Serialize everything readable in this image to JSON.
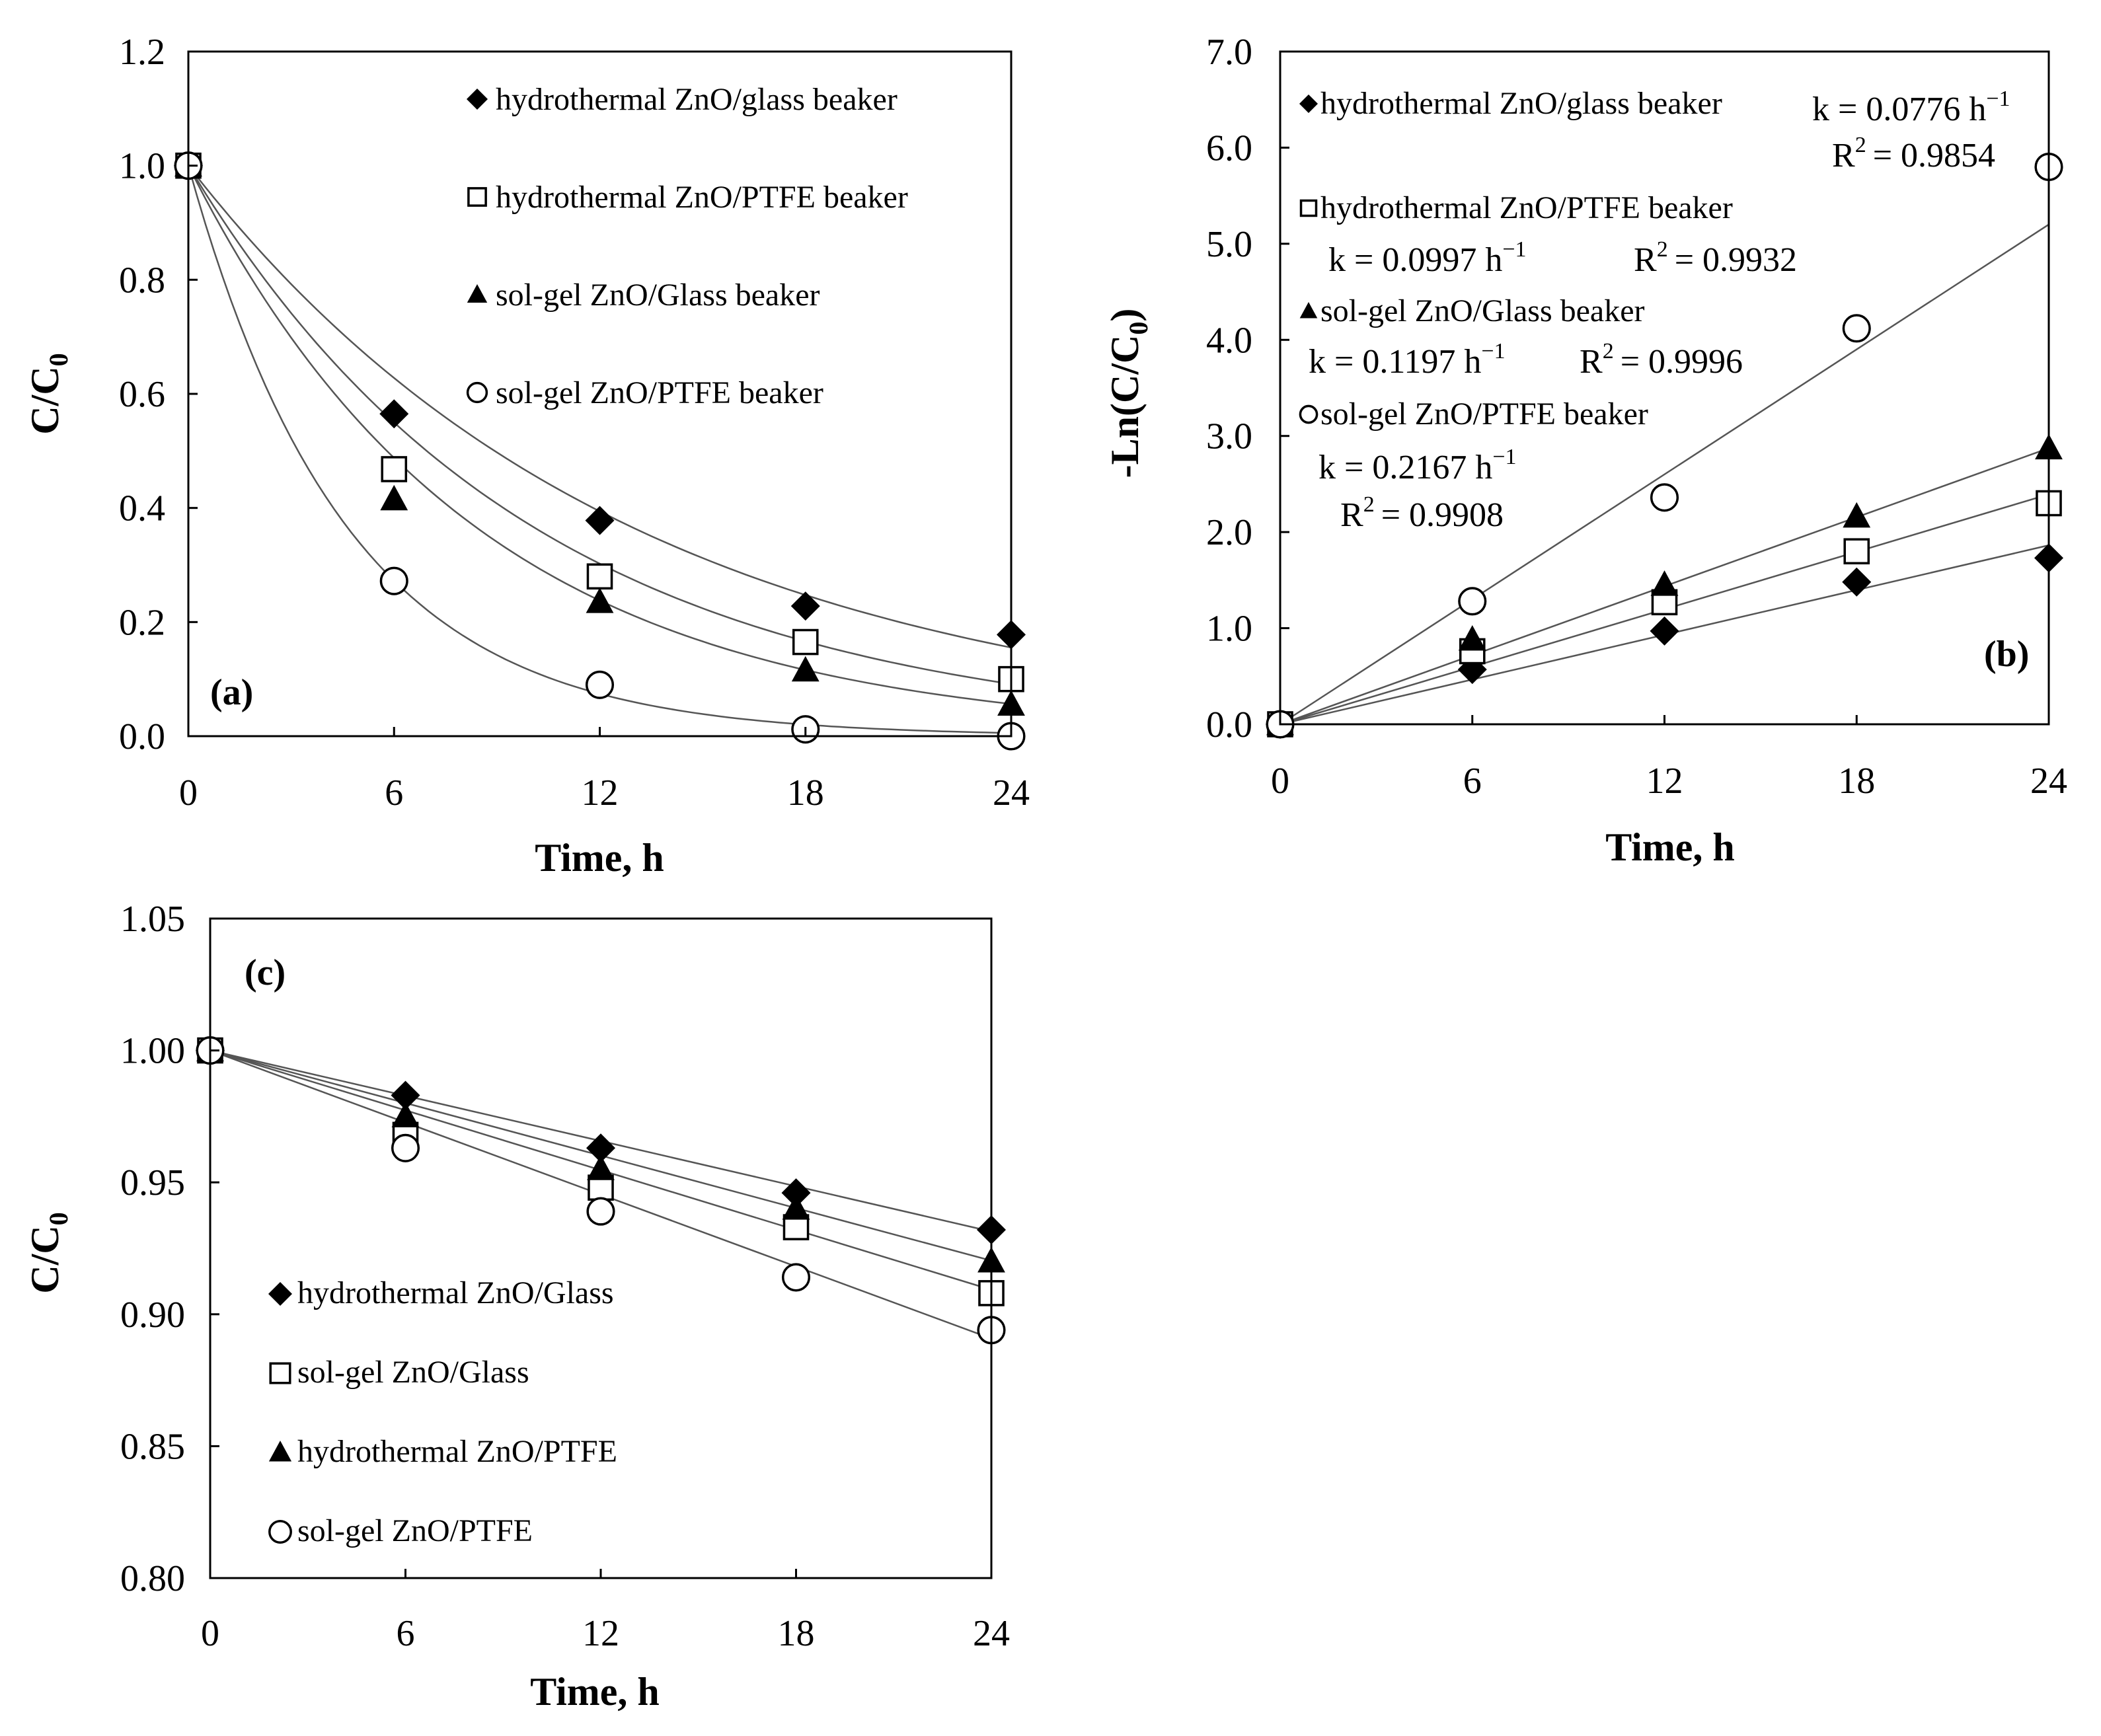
{
  "chart_data": [
    {
      "id": "a",
      "type": "scatter",
      "panel_label": "(a)",
      "xlabel": "Time, h",
      "ylabel_main": "C/C",
      "ylabel_sub": "0",
      "xlim": [
        0,
        24
      ],
      "ylim": [
        0,
        1.2
      ],
      "xticks": [
        "0",
        "6",
        "12",
        "18",
        "24"
      ],
      "yticks": [
        "0.0",
        "0.2",
        "0.4",
        "0.6",
        "0.8",
        "1.0",
        "1.2"
      ],
      "fit": "exponential",
      "x": [
        0,
        6,
        12,
        18,
        24
      ],
      "series": [
        {
          "name": "hydrothermal ZnO/glass beaker",
          "marker": "diamond",
          "k": 0.0776,
          "values": [
            1.0,
            0.565,
            0.378,
            0.228,
            0.178
          ]
        },
        {
          "name": "hydrothermal ZnO/PTFE beaker",
          "marker": "square",
          "k": 0.0997,
          "values": [
            1.0,
            0.468,
            0.28,
            0.165,
            0.1
          ]
        },
        {
          "name": "sol-gel ZnO/Glass beaker",
          "marker": "triangle",
          "k": 0.1197,
          "values": [
            1.0,
            0.415,
            0.235,
            0.115,
            0.055
          ]
        },
        {
          "name": "sol-gel ZnO/PTFE beaker",
          "marker": "circle",
          "k": 0.2167,
          "values": [
            1.0,
            0.272,
            0.09,
            0.012,
            0.0
          ]
        }
      ]
    },
    {
      "id": "b",
      "type": "scatter",
      "panel_label": "(b)",
      "xlabel": "Time, h",
      "ylabel_main": "-Ln(C/C",
      "ylabel_sub": "0",
      "ylabel_end": ")",
      "xlim": [
        0,
        24
      ],
      "ylim": [
        0,
        7
      ],
      "xticks": [
        "0",
        "6",
        "12",
        "18",
        "24"
      ],
      "yticks": [
        "0.0",
        "1.0",
        "2.0",
        "3.0",
        "4.0",
        "5.0",
        "6.0",
        "7.0"
      ],
      "fit": "linear",
      "x": [
        0,
        6,
        12,
        18,
        24
      ],
      "series": [
        {
          "name": "hydrothermal ZnO/glass beaker",
          "marker": "diamond",
          "slope": 0.0776,
          "values": [
            0.0,
            0.57,
            0.97,
            1.48,
            1.73
          ]
        },
        {
          "name": "hydrothermal ZnO/PTFE beaker",
          "marker": "square",
          "slope": 0.0997,
          "values": [
            0.0,
            0.76,
            1.27,
            1.8,
            2.3
          ]
        },
        {
          "name": "sol-gel ZnO/Glass beaker",
          "marker": "triangle",
          "slope": 0.1197,
          "values": [
            0.0,
            0.88,
            1.45,
            2.16,
            2.87
          ]
        },
        {
          "name": "sol-gel ZnO/PTFE beaker",
          "marker": "circle",
          "slope": 0.2167,
          "values": [
            0.0,
            1.28,
            2.36,
            4.12,
            5.8
          ]
        }
      ],
      "annotations": {
        "k_diamond": "k = 0.0776 h",
        "r2_diamond": "= 0.9854",
        "k_square": "k = 0.0997 h",
        "r2_square": "= 0.9932",
        "k_triangle": "k = 0.1197 h",
        "r2_triangle": "= 0.9996",
        "k_circle": "k = 0.2167 h",
        "r2_circle": "= 0.9908",
        "unit_exp": "−1",
        "r_letter": "R",
        "r_exp": "2"
      }
    },
    {
      "id": "c",
      "type": "scatter",
      "panel_label": "(c)",
      "xlabel": "Time, h",
      "ylabel_main": "C/C",
      "ylabel_sub": "0",
      "xlim": [
        0,
        24
      ],
      "ylim": [
        0.8,
        1.05
      ],
      "xticks": [
        "0",
        "6",
        "12",
        "18",
        "24"
      ],
      "yticks": [
        "0.80",
        "0.85",
        "0.90",
        "0.95",
        "1.00",
        "1.05"
      ],
      "fit": "linear",
      "x": [
        0,
        6,
        12,
        18,
        24
      ],
      "series": [
        {
          "name": "hydrothermal ZnO/Glass",
          "marker": "diamond",
          "slope": -0.00286,
          "values": [
            1.0,
            0.983,
            0.963,
            0.946,
            0.932
          ]
        },
        {
          "name": "sol-gel ZnO/Glass",
          "marker": "square",
          "slope": -0.00378,
          "values": [
            1.0,
            0.968,
            0.948,
            0.933,
            0.908
          ]
        },
        {
          "name": "hydrothermal ZnO/PTFE",
          "marker": "triangle",
          "slope": -0.00332,
          "values": [
            1.0,
            0.975,
            0.955,
            0.94,
            0.92
          ]
        },
        {
          "name": "sol-gel ZnO/PTFE",
          "marker": "circle",
          "slope": -0.00455,
          "values": [
            1.0,
            0.963,
            0.939,
            0.914,
            0.894
          ]
        }
      ]
    }
  ]
}
